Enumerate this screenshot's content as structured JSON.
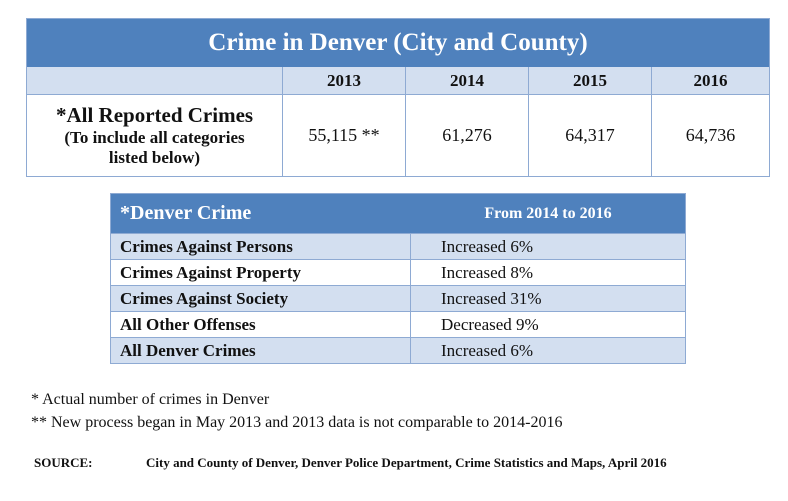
{
  "top_table": {
    "title": "Crime in Denver (City and County)",
    "years": [
      "2013",
      "2014",
      "2015",
      "2016"
    ],
    "row_label_main": "*All Reported Crimes",
    "row_label_sub_1": "(To include all categories",
    "row_label_sub_2": "listed below)",
    "values": [
      "55,115 **",
      "61,276",
      "64,317",
      "64,736"
    ]
  },
  "change_table": {
    "header_left": "*Denver Crime",
    "header_right": "From 2014 to 2016",
    "rows": [
      {
        "category": "Crimes Against Persons",
        "change": "Increased 6%"
      },
      {
        "category": "Crimes Against Property",
        "change": "Increased 8%"
      },
      {
        "category": "Crimes Against Society",
        "change": "Increased 31%"
      },
      {
        "category": "All Other Offenses",
        "change": "Decreased 9%"
      },
      {
        "category": "All Denver Crimes",
        "change": "Increased 6%"
      }
    ]
  },
  "footnotes": {
    "note1": "* Actual number of crimes in Denver",
    "note2": "** New process began in May 2013 and 2013 data is not comparable to 2014-2016",
    "source_label": "SOURCE:",
    "source_text": "City and County of Denver, Denver Police Department, Crime Statistics and Maps, April 2016"
  },
  "colors": {
    "header_blue": "#4f81bd",
    "light_blue": "#d3dff0",
    "border_blue": "#8eaad3"
  }
}
